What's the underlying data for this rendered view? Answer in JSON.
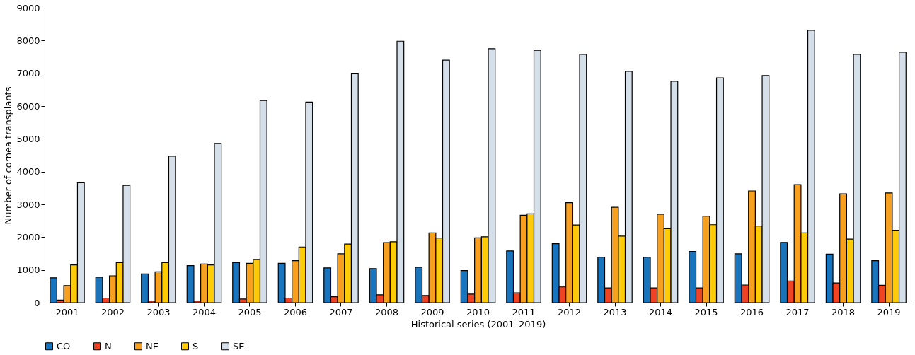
{
  "chart_data": {
    "type": "bar",
    "xlabel": "Historical series (2001–2019)",
    "ylabel": "Number of cornea transplants",
    "categories": [
      "2001",
      "2002",
      "2003",
      "2004",
      "2005",
      "2006",
      "2007",
      "2008",
      "2009",
      "2010",
      "2011",
      "2012",
      "2013",
      "2014",
      "2015",
      "2016",
      "2017",
      "2018",
      "2019"
    ],
    "series": [
      {
        "name": "CO",
        "color": "#1874bd",
        "values": [
          760,
          780,
          880,
          1130,
          1220,
          1200,
          1060,
          1040,
          1080,
          980,
          1580,
          1800,
          1390,
          1390,
          1560,
          1490,
          1840,
          1480,
          1280
        ]
      },
      {
        "name": "N",
        "color": "#ee4423",
        "values": [
          80,
          140,
          50,
          50,
          110,
          140,
          180,
          240,
          220,
          260,
          300,
          480,
          450,
          450,
          450,
          540,
          660,
          600,
          530
        ]
      },
      {
        "name": "NE",
        "color": "#f7a01f",
        "values": [
          520,
          820,
          940,
          1180,
          1200,
          1280,
          1490,
          1830,
          2130,
          1980,
          2670,
          3050,
          2910,
          2700,
          2640,
          3410,
          3600,
          3320,
          3350
        ]
      },
      {
        "name": "S",
        "color": "#fecb08",
        "values": [
          1150,
          1220,
          1220,
          1150,
          1320,
          1700,
          1790,
          1860,
          1970,
          2010,
          2710,
          2370,
          2030,
          2260,
          2380,
          2340,
          2130,
          1940,
          2210
        ]
      },
      {
        "name": "SE",
        "color": "#d5dfe9",
        "values": [
          3660,
          3580,
          4470,
          4860,
          6170,
          6120,
          7000,
          7980,
          7400,
          7750,
          7700,
          7580,
          7060,
          6760,
          6860,
          6930,
          8310,
          7580,
          7640
        ]
      }
    ],
    "ylim": [
      0,
      9000
    ],
    "yticks": [
      0,
      1000,
      2000,
      3000,
      4000,
      5000,
      6000,
      7000,
      8000,
      9000
    ],
    "grid": false,
    "legend": "bottom"
  }
}
